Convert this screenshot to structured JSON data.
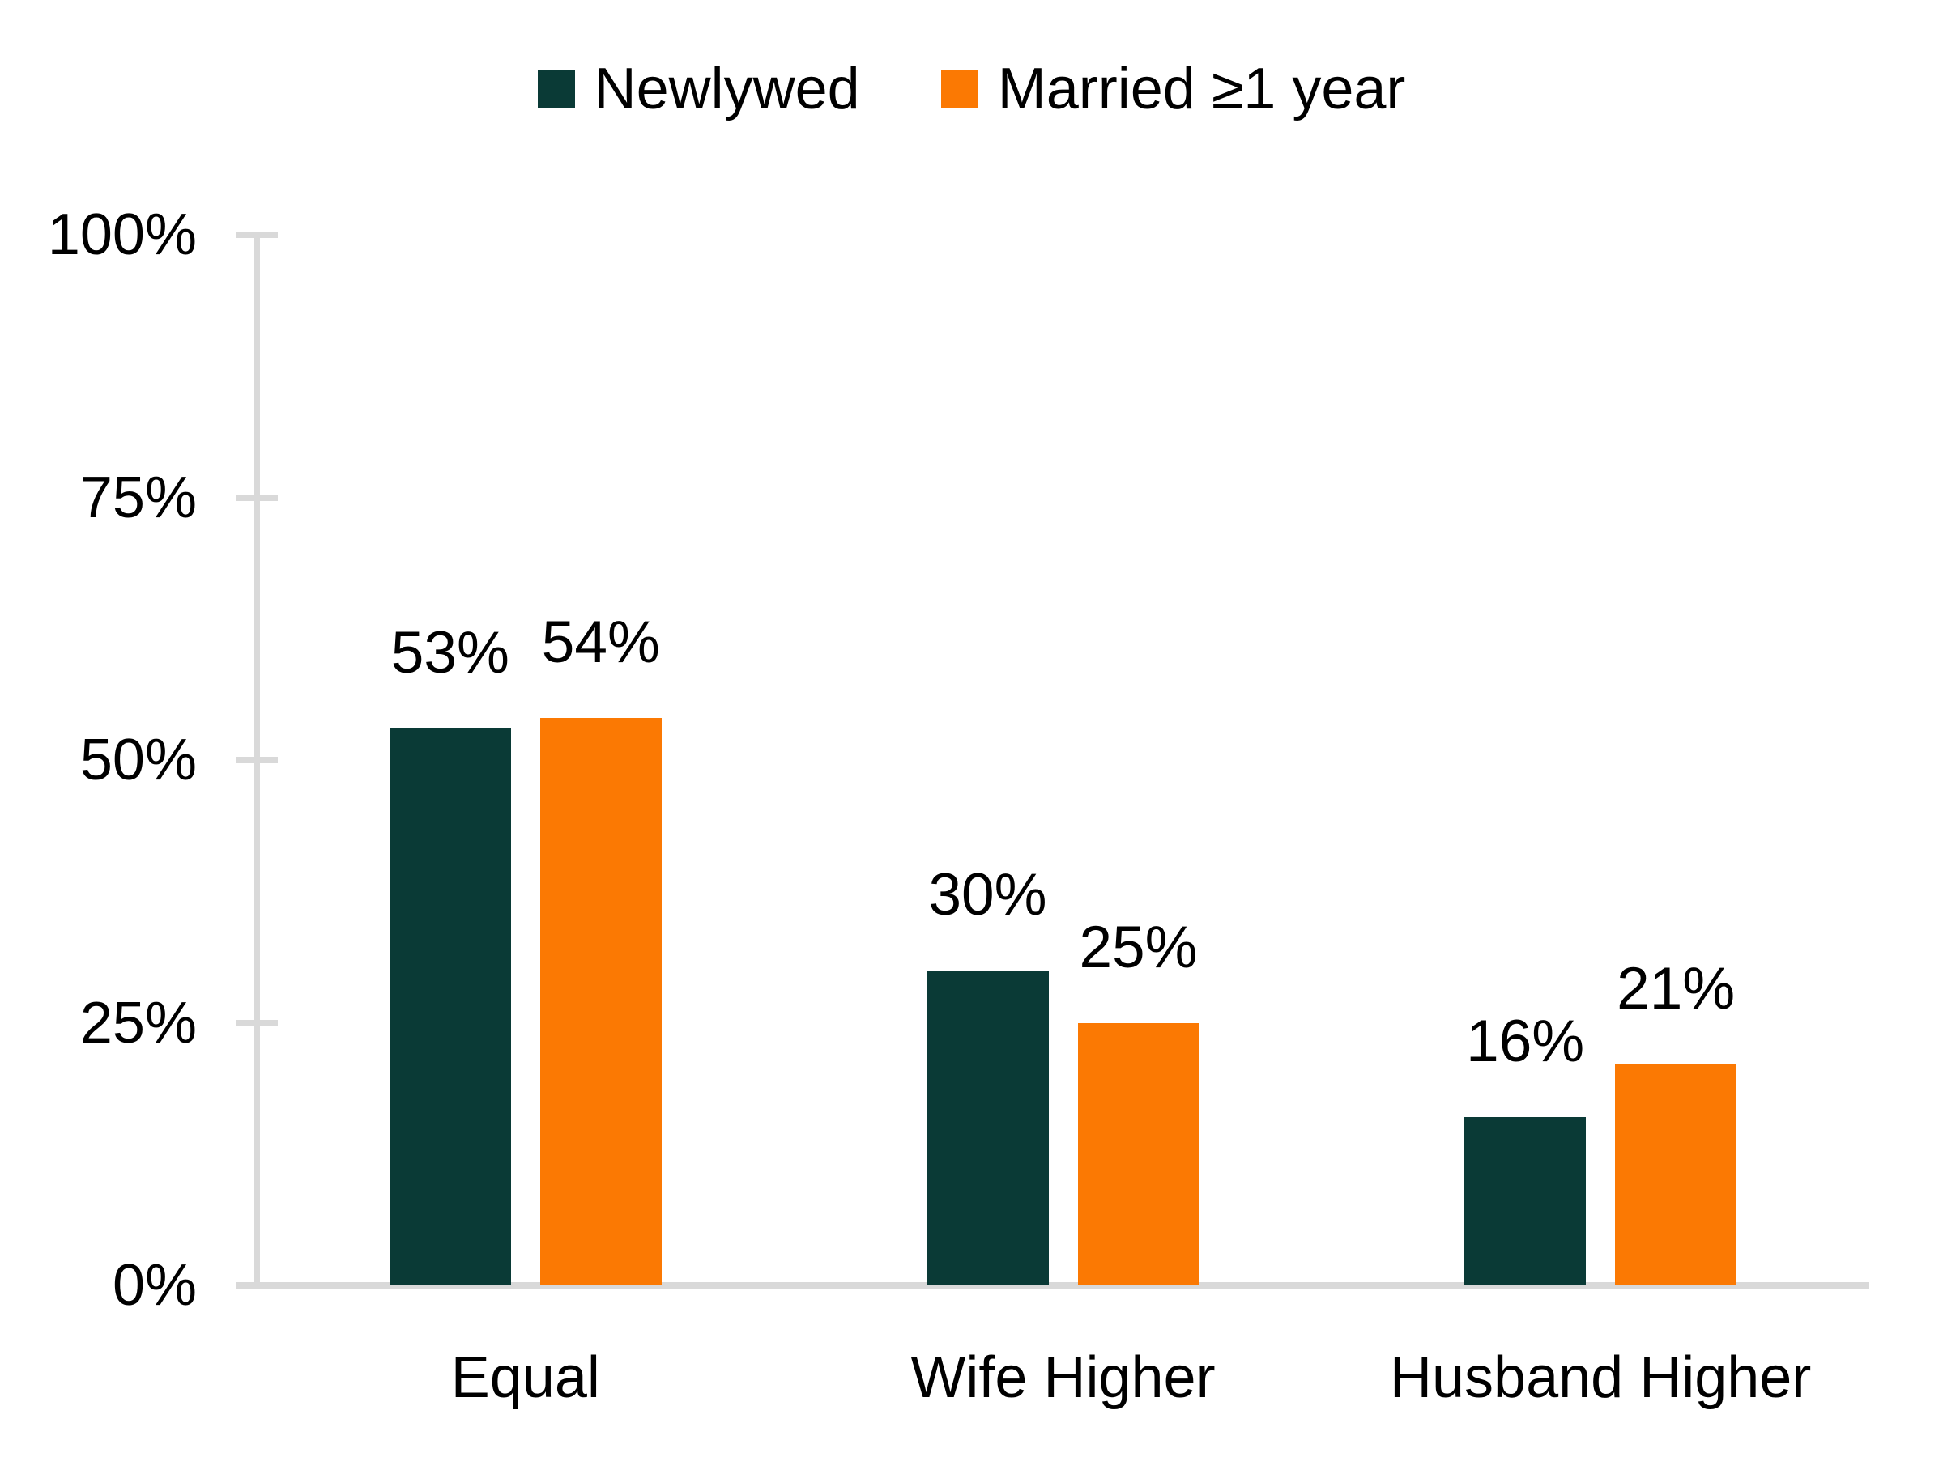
{
  "chart_data": {
    "type": "bar",
    "title": "",
    "categories": [
      "Equal",
      "Wife Higher",
      "Husband Higher"
    ],
    "series": [
      {
        "name": "Newlywed",
        "color": "#0a3a36",
        "values": [
          53,
          30,
          16
        ]
      },
      {
        "name": "Married ≥1 year",
        "color": "#fb7903",
        "values": [
          54,
          25,
          21
        ]
      }
    ],
    "data_labels": [
      [
        "53%",
        "30%",
        "16%"
      ],
      [
        "54%",
        "25%",
        "21%"
      ]
    ],
    "ylabel": "",
    "xlabel": "",
    "ylim": [
      0,
      100
    ],
    "y_ticks": [
      {
        "value": 0,
        "label": "0%"
      },
      {
        "value": 25,
        "label": "25%"
      },
      {
        "value": 50,
        "label": "50%"
      },
      {
        "value": 75,
        "label": "75%"
      },
      {
        "value": 100,
        "label": "100%"
      }
    ],
    "legend_position": "top",
    "grid": false,
    "colors": {
      "axis": "#d9d9d9",
      "text": "#000000",
      "background": "#ffffff"
    }
  }
}
